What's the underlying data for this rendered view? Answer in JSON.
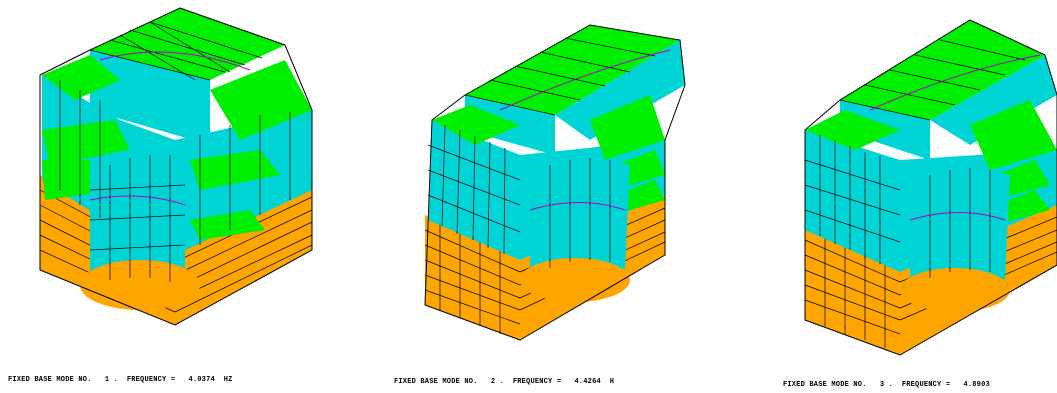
{
  "colors": {
    "roof": "#00ee00",
    "wall": "#00d4d4",
    "base": "#ffa500",
    "mesh": "#000000",
    "modal_line": "#b000c8"
  },
  "panels": [
    {
      "mode_label": "FIXED BASE MODE NO.",
      "mode_no": "1",
      "freq_label": "FREQUENCY =",
      "freq_value": "4.0374",
      "unit": "HZ"
    },
    {
      "mode_label": "FIXED BASE MODE NO.",
      "mode_no": "2",
      "freq_label": "FREQUENCY =",
      "freq_value": "4.4264",
      "unit": "H"
    },
    {
      "mode_label": "FIXED BASE MODE NO.",
      "mode_no": "3",
      "freq_label": "FREQUENCY =",
      "freq_value": "4.8903",
      "unit": ""
    }
  ]
}
